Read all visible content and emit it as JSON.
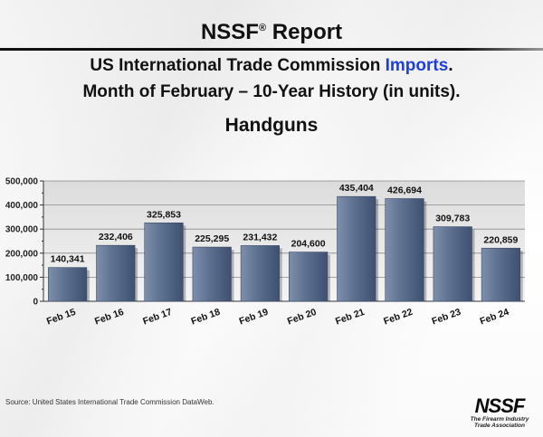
{
  "header": {
    "title": "NSSF",
    "title_mark": "®",
    "title_rest": " Report",
    "subtitle1_pre": "US International Trade Commission ",
    "subtitle1_highlight": "Imports",
    "subtitle1_post": ".",
    "subtitle2": "Month of February – 10-Year History (in units)."
  },
  "chart_data": {
    "type": "bar",
    "title": "Handguns",
    "xlabel": "",
    "ylabel": "",
    "categories": [
      "Feb 15",
      "Feb 16",
      "Feb 17",
      "Feb 18",
      "Feb 19",
      "Feb 20",
      "Feb 21",
      "Feb 22",
      "Feb 23",
      "Feb 24"
    ],
    "values": [
      140341,
      232406,
      325853,
      225295,
      231432,
      204600,
      435404,
      426694,
      309783,
      220859
    ],
    "data_labels": [
      "140,341",
      "232,406",
      "325,853",
      "225,295",
      "231,432",
      "204,600",
      "435,404",
      "426,694",
      "309,783",
      "220,859"
    ],
    "ylim": [
      0,
      500000
    ],
    "y_ticks": [
      "0",
      "100,000",
      "200,000",
      "300,000",
      "400,000",
      "500,000"
    ],
    "y_tick_values": [
      0,
      100000,
      200000,
      300000,
      400000,
      500000
    ],
    "grid": true,
    "bar_color": "#5b6f8e"
  },
  "footer": {
    "source": "Source: United States International Trade Commission DataWeb.",
    "logo_text": "NSSF",
    "logo_tagline1": "The Firearm Industry",
    "logo_tagline2": "Trade Association"
  }
}
